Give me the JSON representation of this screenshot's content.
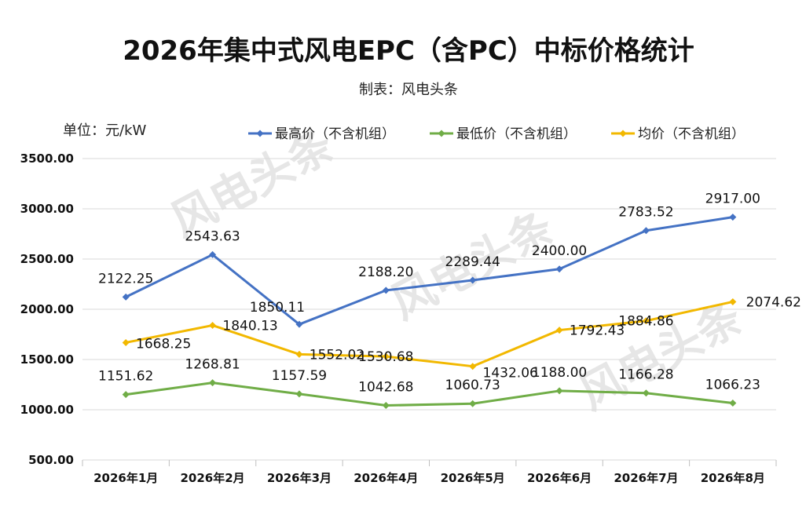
{
  "chart_data": {
    "type": "line",
    "title": "2026年集中式风电EPC（含PC）中标价格统计",
    "subtitle": "制表：风电头条",
    "unit_label": "单位：元/kW",
    "watermark": "风电头条",
    "categories": [
      "2026年1月",
      "2026年2月",
      "2026年3月",
      "2026年4月",
      "2026年5月",
      "2026年6月",
      "2026年7月",
      "2026年8月"
    ],
    "ylim": [
      500,
      3500
    ],
    "yticks": [
      500,
      1000,
      1500,
      2000,
      2500,
      3000,
      3500
    ],
    "ytick_labels": [
      "500.00",
      "1000.00",
      "1500.00",
      "2000.00",
      "2500.00",
      "3000.00",
      "3500.00"
    ],
    "grid": true,
    "legend_position": "top",
    "series": [
      {
        "name": "最高价（不含机组）",
        "color": "#4472C4",
        "values": [
          2122.25,
          2543.63,
          1850.11,
          2188.2,
          2289.44,
          2400.0,
          2783.52,
          2917.0
        ],
        "labels": [
          "2122.25",
          "2543.63",
          "1850.11",
          "2188.20",
          "2289.44",
          "2400.00",
          "2783.52",
          "2917.00"
        ]
      },
      {
        "name": "最低价（不含机组）",
        "color": "#70AD47",
        "values": [
          1151.62,
          1268.81,
          1157.59,
          1042.68,
          1060.73,
          1188.0,
          1166.28,
          1066.23
        ],
        "labels": [
          "1151.62",
          "1268.81",
          "1157.59",
          "1042.68",
          "1060.73",
          "1188.00",
          "1166.28",
          "1066.23"
        ]
      },
      {
        "name": "均价（不含机组）",
        "color": "#F2B800",
        "values": [
          1668.25,
          1840.13,
          1552.02,
          1530.68,
          1432.06,
          1792.43,
          1884.86,
          2074.62
        ],
        "labels": [
          "1668.25",
          "1840.13",
          "1552.02",
          "1530.68",
          "1432.06",
          "1792.43",
          "1884.86",
          "2074.62"
        ]
      }
    ]
  }
}
